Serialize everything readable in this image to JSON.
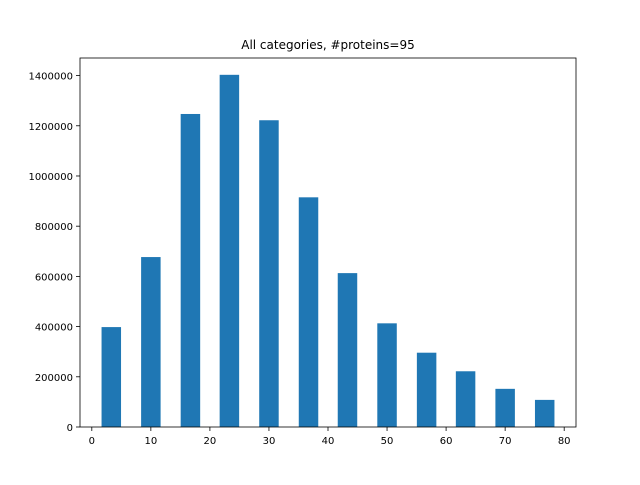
{
  "chart_data": {
    "type": "bar",
    "title": "All categories, #proteins=95",
    "xlabel": "",
    "ylabel": "",
    "x": [
      3.3,
      10,
      16.7,
      23.3,
      30,
      36.7,
      43.3,
      50,
      56.7,
      63.3,
      70,
      76.7
    ],
    "values": [
      398000,
      677000,
      1247000,
      1403000,
      1222000,
      915000,
      613000,
      413000,
      296000,
      222000,
      152000,
      108000
    ],
    "xlim": [
      -2,
      82
    ],
    "ylim": [
      0,
      1470000
    ],
    "xticks": [
      0,
      10,
      20,
      30,
      40,
      50,
      60,
      70,
      80
    ],
    "yticks": [
      0,
      200000,
      400000,
      600000,
      800000,
      1000000,
      1200000,
      1400000
    ],
    "xtick_labels": [
      "0",
      "10",
      "20",
      "30",
      "40",
      "50",
      "60",
      "70",
      "80"
    ],
    "ytick_labels": [
      "0",
      "200000",
      "400000",
      "600000",
      "800000",
      "1000000",
      "1200000",
      "1400000"
    ],
    "bar_width": 3.3,
    "grid": false,
    "bar_color": "#1f77b4"
  }
}
